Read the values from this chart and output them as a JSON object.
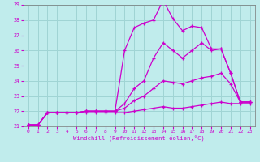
{
  "title": "",
  "xlabel": "Windchill (Refroidissement éolien,°C)",
  "ylabel": "",
  "bg_color": "#c0ecec",
  "grid_color": "#a0d4d4",
  "line_color": "#cc00cc",
  "xlim": [
    -0.5,
    23.5
  ],
  "ylim": [
    21,
    29
  ],
  "xticks": [
    0,
    1,
    2,
    3,
    4,
    5,
    6,
    7,
    8,
    9,
    10,
    11,
    12,
    13,
    14,
    15,
    16,
    17,
    18,
    19,
    20,
    21,
    22,
    23
  ],
  "yticks": [
    21,
    22,
    23,
    24,
    25,
    26,
    27,
    28,
    29
  ],
  "series": [
    {
      "x": [
        0,
        1,
        2,
        3,
        4,
        5,
        6,
        7,
        8,
        9,
        10,
        11,
        12,
        13,
        14,
        15,
        16,
        17,
        18,
        19,
        20,
        21,
        22,
        23
      ],
      "y": [
        21.1,
        21.1,
        21.9,
        21.9,
        21.9,
        21.9,
        22.0,
        22.0,
        22.0,
        22.0,
        26.0,
        27.5,
        27.8,
        28.0,
        29.3,
        28.1,
        27.3,
        27.6,
        27.5,
        26.1,
        26.1,
        24.5,
        22.6,
        22.6
      ]
    },
    {
      "x": [
        0,
        1,
        2,
        3,
        4,
        5,
        6,
        7,
        8,
        9,
        10,
        11,
        12,
        13,
        14,
        15,
        16,
        17,
        18,
        19,
        20,
        21,
        22,
        23
      ],
      "y": [
        21.1,
        21.1,
        21.9,
        21.9,
        21.9,
        21.9,
        22.0,
        22.0,
        22.0,
        22.0,
        22.5,
        23.5,
        24.0,
        25.5,
        26.5,
        26.0,
        25.5,
        26.0,
        26.5,
        26.0,
        26.1,
        24.5,
        22.6,
        22.6
      ]
    },
    {
      "x": [
        0,
        1,
        2,
        3,
        4,
        5,
        6,
        7,
        8,
        9,
        10,
        11,
        12,
        13,
        14,
        15,
        16,
        17,
        18,
        19,
        20,
        21,
        22,
        23
      ],
      "y": [
        21.1,
        21.1,
        21.9,
        21.9,
        21.9,
        21.9,
        22.0,
        22.0,
        22.0,
        22.0,
        22.2,
        22.7,
        23.0,
        23.5,
        24.0,
        23.9,
        23.8,
        24.0,
        24.2,
        24.3,
        24.5,
        23.8,
        22.6,
        22.6
      ]
    },
    {
      "x": [
        0,
        1,
        2,
        3,
        4,
        5,
        6,
        7,
        8,
        9,
        10,
        11,
        12,
        13,
        14,
        15,
        16,
        17,
        18,
        19,
        20,
        21,
        22,
        23
      ],
      "y": [
        21.1,
        21.1,
        21.9,
        21.9,
        21.9,
        21.9,
        21.9,
        21.9,
        21.9,
        21.9,
        21.9,
        22.0,
        22.1,
        22.2,
        22.3,
        22.2,
        22.2,
        22.3,
        22.4,
        22.5,
        22.6,
        22.5,
        22.5,
        22.5
      ]
    }
  ]
}
